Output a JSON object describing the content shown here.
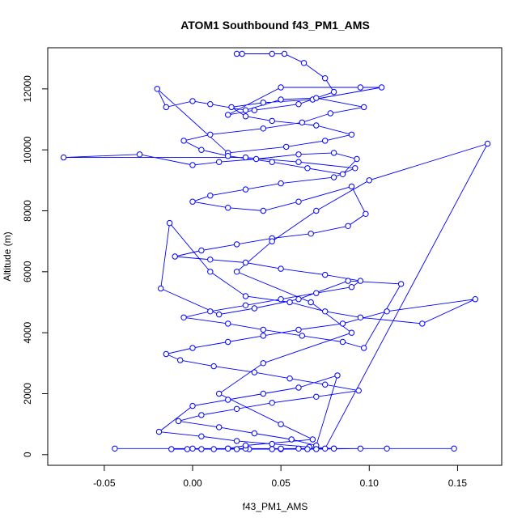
{
  "chart_data": {
    "type": "line",
    "title": "ATOM1 Southbound f43_PM1_AMS",
    "xlabel": "f43_PM1_AMS",
    "ylabel": "Altitude (m)",
    "xlim": [
      -0.082,
      0.175
    ],
    "ylim": [
      -350,
      13350
    ],
    "x_ticks": [
      {
        "value": -0.05,
        "label": "-0.05"
      },
      {
        "value": 0.0,
        "label": "0.00"
      },
      {
        "value": 0.05,
        "label": "0.05"
      },
      {
        "value": 0.1,
        "label": "0.10"
      },
      {
        "value": 0.15,
        "label": "0.15"
      }
    ],
    "y_ticks": [
      {
        "value": 0,
        "label": "0"
      },
      {
        "value": 2000,
        "label": "2000"
      },
      {
        "value": 4000,
        "label": "4000"
      },
      {
        "value": 6000,
        "label": "6000"
      },
      {
        "value": 8000,
        "label": "8000"
      },
      {
        "value": 10000,
        "label": "10000"
      },
      {
        "value": 12000,
        "label": "12000"
      }
    ],
    "grid": false,
    "legend": "none",
    "series_color": "#0000ff",
    "x": [
      0.025,
      0.028,
      0.045,
      0.052,
      0.063,
      0.075,
      0.08,
      0.06,
      0.035,
      0.02,
      0.05,
      0.095,
      0.107,
      0.068,
      0.04,
      0.022,
      0.03,
      0.045,
      0.07,
      0.09,
      0.075,
      0.053,
      0.02,
      -0.02,
      -0.015,
      0.0,
      0.01,
      0.03,
      0.05,
      0.07,
      0.097,
      0.078,
      0.062,
      0.04,
      0.01,
      -0.005,
      0.005,
      0.02,
      0.045,
      0.065,
      0.085,
      0.093,
      0.08,
      0.06,
      0.036,
      0.015,
      0.0,
      -0.03,
      -0.073,
      0.03,
      0.06,
      0.092,
      0.08,
      0.05,
      0.03,
      0.01,
      0.0,
      0.02,
      0.04,
      0.06,
      0.09,
      0.098,
      0.088,
      0.067,
      0.045,
      0.025,
      0.005,
      -0.01,
      0.01,
      0.03,
      0.05,
      0.075,
      0.095,
      0.09,
      0.07,
      0.05,
      0.03,
      0.01,
      -0.005,
      0.02,
      0.04,
      0.062,
      0.085,
      0.097,
      0.118,
      0.088,
      0.06,
      0.035,
      0.015,
      -0.018,
      -0.013,
      0.01,
      0.03,
      0.055,
      0.075,
      0.095,
      0.13,
      0.16,
      0.11,
      0.085,
      0.06,
      0.04,
      0.02,
      0.0,
      -0.015,
      -0.007,
      0.012,
      0.035,
      0.055,
      0.075,
      0.094,
      0.07,
      0.045,
      0.025,
      0.005,
      -0.008,
      0.015,
      0.035,
      0.056,
      0.07,
      0.082,
      0.06,
      0.04,
      0.02,
      0.0,
      -0.019,
      0.005,
      0.025,
      0.045,
      0.066,
      0.08,
      0.065,
      0.045,
      0.025,
      0.005,
      -0.003,
      -0.012,
      0.012,
      0.032,
      0.05,
      0.07,
      0.095,
      0.148,
      0.11,
      0.08,
      0.05,
      0.02,
      -0.044,
      0.0,
      0.03,
      0.06,
      0.075,
      0.167,
      0.1,
      0.07,
      0.045,
      0.025,
      0.067,
      0.09,
      0.04,
      0.015,
      0.05,
      0.068,
      0.03,
      0.02
    ],
    "y": [
      13150,
      13150,
      13150,
      13150,
      12850,
      12350,
      11900,
      11500,
      11300,
      11150,
      12050,
      12050,
      12050,
      11650,
      11550,
      11400,
      11100,
      10950,
      10800,
      10500,
      10300,
      10100,
      9900,
      12000,
      11400,
      11600,
      11500,
      11300,
      11650,
      11700,
      11400,
      11200,
      10900,
      10700,
      10500,
      10300,
      10000,
      9800,
      9600,
      9400,
      9200,
      9700,
      9900,
      9850,
      9700,
      9600,
      9500,
      9850,
      9750,
      9750,
      9600,
      9400,
      9100,
      8900,
      8700,
      8500,
      8300,
      8100,
      8000,
      8300,
      8800,
      7900,
      7500,
      7250,
      7100,
      6900,
      6700,
      6500,
      6400,
      6300,
      6100,
      5900,
      5700,
      5500,
      5300,
      5100,
      4900,
      4700,
      4500,
      4300,
      4100,
      3900,
      3700,
      3500,
      5600,
      5700,
      5100,
      4800,
      4600,
      5450,
      7600,
      6000,
      5200,
      5000,
      4700,
      4500,
      4300,
      5100,
      4700,
      4300,
      4100,
      3900,
      3700,
      3500,
      3300,
      3100,
      2900,
      2700,
      2500,
      2300,
      2100,
      1900,
      1700,
      1500,
      1300,
      1100,
      900,
      700,
      500,
      300,
      2600,
      2200,
      2000,
      1800,
      1600,
      750,
      600,
      450,
      350,
      250,
      200,
      180,
      180,
      180,
      180,
      180,
      180,
      180,
      180,
      180,
      180,
      200,
      200,
      200,
      200,
      200,
      200,
      200,
      200,
      200,
      200,
      200,
      10200,
      9000,
      8000,
      7000,
      6000,
      5000,
      4000,
      3000,
      2000,
      1000,
      500,
      300,
      200
    ]
  }
}
